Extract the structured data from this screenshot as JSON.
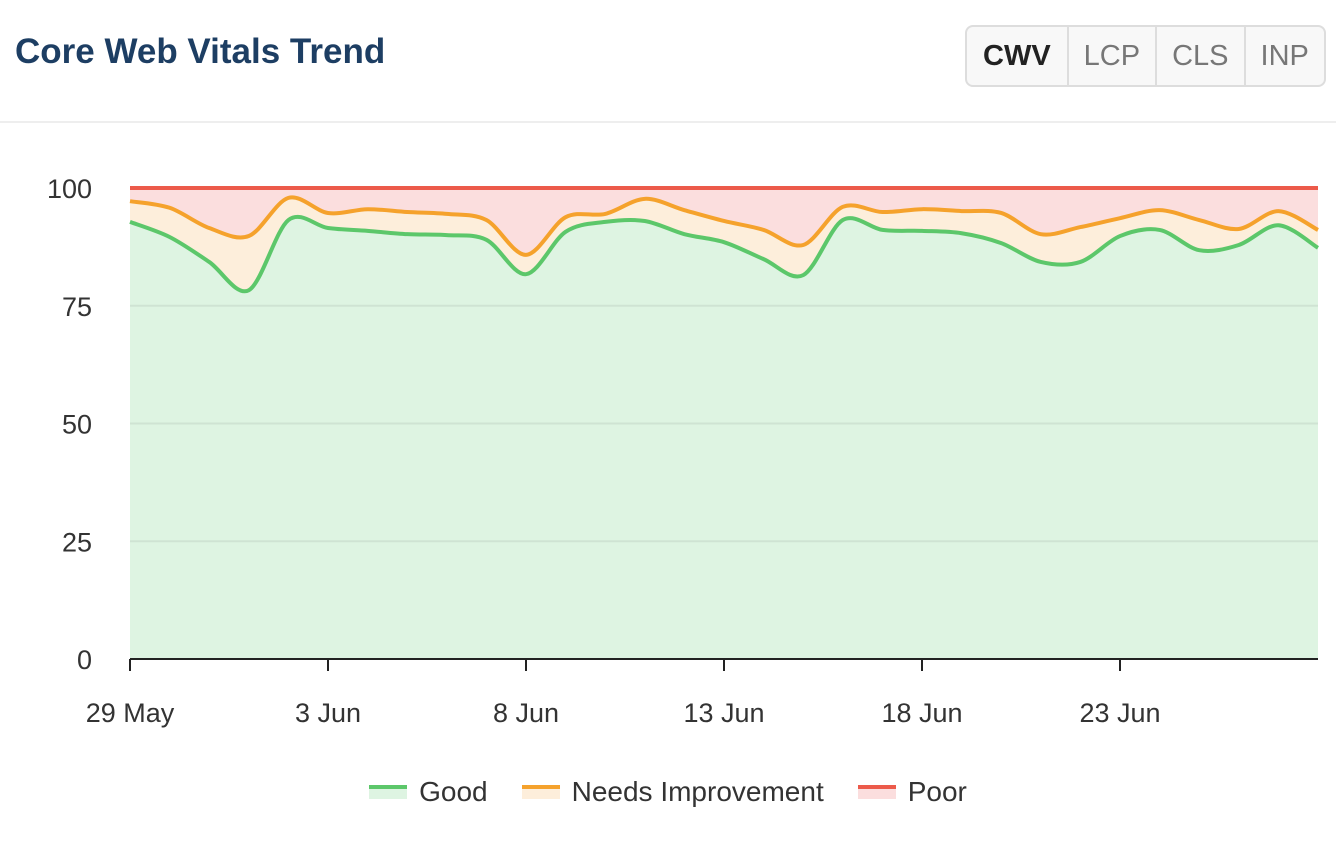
{
  "header": {
    "title": "Core Web Vitals Trend",
    "tabs": [
      {
        "label": "CWV",
        "active": true
      },
      {
        "label": "LCP"
      },
      {
        "label": "CLS"
      },
      {
        "label": "INP"
      }
    ]
  },
  "colors": {
    "good": "#5cc76a",
    "good_fill": "#def4e2",
    "ni": "#f5a22c",
    "ni_fill": "#fdeedb",
    "poor": "#ec5a4a",
    "poor_fill": "#fbdede"
  },
  "chart_data": {
    "type": "area",
    "stacked": true,
    "ylim": [
      0,
      100
    ],
    "grid": true,
    "legend_position": "bottom",
    "yticks": [
      "0",
      "25",
      "50",
      "75",
      "100"
    ],
    "xticks": [
      "29 May",
      "3 Jun",
      "8 Jun",
      "13 Jun",
      "18 Jun",
      "23 Jun"
    ],
    "x_start": "29 May",
    "x_end": "28 Jun",
    "series": [
      {
        "name": "Good",
        "values": [
          92.8,
          89.6,
          84.3,
          78.3,
          93.2,
          91.5,
          90.9,
          90.2,
          90.0,
          89.0,
          81.7,
          90.7,
          92.8,
          93.0,
          90.2,
          88.5,
          84.9,
          81.5,
          93.2,
          91.1,
          90.9,
          90.4,
          88.3,
          84.3,
          84.3,
          89.8,
          91.1,
          86.8,
          87.9,
          92.1,
          87.3
        ]
      },
      {
        "name": "Needs Improvement",
        "values": [
          4.4,
          6.2,
          7.2,
          11.5,
          4.7,
          3.2,
          4.6,
          4.7,
          4.5,
          4.2,
          4.1,
          3.1,
          1.7,
          4.7,
          5.1,
          4.5,
          6.2,
          6.4,
          2.8,
          3.8,
          4.6,
          4.7,
          6.4,
          5.9,
          7.4,
          3.8,
          4.2,
          6.4,
          3.4,
          3.0,
          3.8
        ]
      },
      {
        "name": "Poor",
        "values": [
          2.8,
          4.2,
          8.5,
          10.2,
          2.1,
          5.3,
          4.5,
          5.1,
          5.5,
          6.8,
          14.2,
          6.2,
          5.5,
          2.3,
          4.7,
          7.0,
          8.9,
          12.1,
          4.0,
          5.1,
          4.5,
          4.9,
          5.3,
          9.8,
          8.3,
          6.4,
          4.7,
          6.8,
          8.7,
          4.9,
          8.9
        ]
      }
    ]
  }
}
